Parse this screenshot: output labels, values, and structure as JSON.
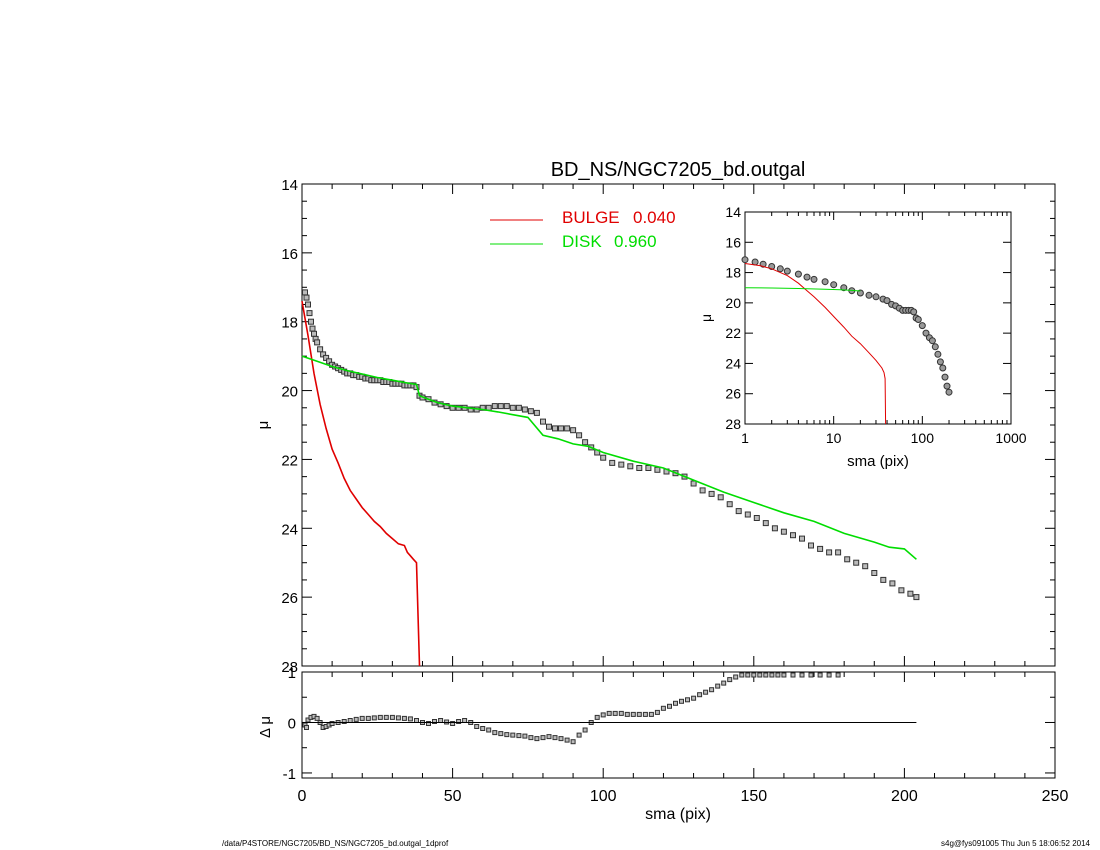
{
  "footer": {
    "path": "/data/P4STORE/NGC7205/BD_NS/NGC7205_bd.outgal_1dprof",
    "stamp": "s4g@fys091005  Thu Jun  5 18:06:52 2014"
  },
  "colors": {
    "bulge": "#e00000",
    "disk": "#00dd00",
    "data": "#555555",
    "axis": "#000000"
  },
  "chart_data": [
    {
      "id": "main",
      "type": "scatter",
      "title": "BD_NS/NGC7205_bd.outgal",
      "xlabel": "",
      "ylabel": "μ",
      "xlim": [
        0,
        250
      ],
      "ylim": [
        28,
        14
      ],
      "yticks": [
        14,
        16,
        18,
        20,
        22,
        24,
        26,
        28
      ],
      "legend": [
        {
          "name": "BULGE",
          "value": "0.040",
          "color": "#e00000"
        },
        {
          "name": "DISK",
          "value": "0.960",
          "color": "#00dd00"
        }
      ],
      "legend_placement": "top-center",
      "series": [
        {
          "name": "data",
          "kind": "points",
          "x": [
            1,
            1.5,
            2,
            2.5,
            3,
            3.5,
            4,
            4.5,
            5,
            6,
            7,
            8,
            9,
            10,
            11,
            12,
            13,
            14,
            15,
            16,
            17,
            18,
            19,
            20,
            21,
            22,
            23,
            24,
            25,
            26,
            27,
            28,
            29,
            30,
            31,
            32,
            33,
            34,
            35,
            36,
            37,
            38,
            39,
            40,
            42,
            44,
            46,
            48,
            50,
            52,
            54,
            56,
            58,
            60,
            62,
            64,
            66,
            68,
            70,
            72,
            74,
            76,
            78,
            80,
            82,
            84,
            86,
            88,
            90,
            92,
            94,
            96,
            98,
            100,
            103,
            106,
            109,
            112,
            115,
            118,
            121,
            124,
            127,
            130,
            133,
            136,
            139,
            142,
            145,
            148,
            151,
            154,
            157,
            160,
            163,
            166,
            169,
            172,
            175,
            178,
            181,
            184,
            187,
            190,
            193,
            196,
            199,
            202,
            204
          ],
          "y": [
            17.15,
            17.3,
            17.5,
            17.75,
            18.0,
            18.2,
            18.35,
            18.5,
            18.6,
            18.8,
            18.95,
            19.05,
            19.15,
            19.25,
            19.3,
            19.35,
            19.4,
            19.45,
            19.5,
            19.5,
            19.55,
            19.55,
            19.6,
            19.6,
            19.65,
            19.65,
            19.7,
            19.7,
            19.7,
            19.7,
            19.75,
            19.75,
            19.75,
            19.8,
            19.8,
            19.8,
            19.8,
            19.85,
            19.85,
            19.85,
            19.85,
            19.9,
            20.15,
            20.2,
            20.25,
            20.35,
            20.4,
            20.45,
            20.5,
            20.5,
            20.5,
            20.55,
            20.55,
            20.5,
            20.5,
            20.45,
            20.45,
            20.45,
            20.5,
            20.5,
            20.55,
            20.6,
            20.65,
            20.9,
            21.05,
            21.1,
            21.1,
            21.1,
            21.15,
            21.3,
            21.5,
            21.65,
            21.8,
            21.95,
            22.1,
            22.15,
            22.2,
            22.25,
            22.25,
            22.3,
            22.35,
            22.4,
            22.5,
            22.7,
            22.9,
            23.0,
            23.1,
            23.3,
            23.5,
            23.6,
            23.7,
            23.85,
            24.0,
            24.1,
            24.2,
            24.3,
            24.5,
            24.6,
            24.7,
            24.7,
            24.9,
            25.0,
            25.1,
            25.3,
            25.5,
            25.6,
            25.8,
            25.9,
            26.0
          ]
        },
        {
          "name": "BULGE",
          "kind": "line",
          "color": "#e00000",
          "x": [
            0,
            2,
            4,
            6,
            8,
            10,
            12,
            14,
            16,
            18,
            20,
            22,
            24,
            26,
            28,
            30,
            32,
            34,
            35,
            36,
            37,
            38,
            39
          ],
          "y": [
            17.4,
            18.4,
            19.5,
            20.4,
            21.1,
            21.7,
            22.1,
            22.55,
            22.9,
            23.15,
            23.4,
            23.6,
            23.8,
            23.95,
            24.15,
            24.3,
            24.45,
            24.5,
            24.7,
            24.8,
            24.9,
            25.0,
            28.3
          ]
        },
        {
          "name": "DISK",
          "kind": "line",
          "color": "#00dd00",
          "x": [
            0,
            5,
            10,
            15,
            20,
            25,
            30,
            35,
            38,
            39,
            41,
            45,
            50,
            55,
            60,
            65,
            70,
            75,
            80,
            85,
            90,
            95,
            100,
            110,
            120,
            130,
            140,
            150,
            160,
            170,
            180,
            190,
            195,
            200,
            204
          ],
          "y": [
            19.0,
            19.15,
            19.3,
            19.42,
            19.52,
            19.62,
            19.7,
            19.78,
            19.82,
            20.15,
            20.22,
            20.35,
            20.45,
            20.5,
            20.55,
            20.62,
            20.7,
            20.78,
            21.3,
            21.4,
            21.55,
            21.62,
            21.8,
            22.05,
            22.25,
            22.6,
            22.95,
            23.25,
            23.55,
            23.8,
            24.15,
            24.4,
            24.55,
            24.6,
            24.9
          ]
        }
      ]
    },
    {
      "id": "inset",
      "type": "scatter",
      "xlabel": "sma (pix)",
      "ylabel": "μ",
      "xscale": "log",
      "xlim": [
        1,
        1000
      ],
      "ylim": [
        28,
        14
      ],
      "xticks": [
        "1",
        "10",
        "100",
        "1000"
      ],
      "yticks": [
        14,
        16,
        18,
        20,
        22,
        24,
        26,
        28
      ],
      "series": [
        {
          "name": "data",
          "kind": "points",
          "x": [
            1,
            1.3,
            1.6,
            2,
            2.5,
            3,
            4,
            5,
            6,
            8,
            10,
            13,
            16,
            20,
            25,
            30,
            36,
            40,
            45,
            50,
            55,
            60,
            65,
            70,
            75,
            80,
            85,
            90,
            100,
            110,
            120,
            130,
            140,
            150,
            160,
            170,
            180,
            190,
            200
          ],
          "y": [
            17.15,
            17.3,
            17.45,
            17.6,
            17.75,
            17.9,
            18.1,
            18.3,
            18.45,
            18.6,
            18.8,
            19.0,
            19.2,
            19.35,
            19.5,
            19.6,
            19.75,
            19.85,
            20.1,
            20.2,
            20.35,
            20.5,
            20.5,
            20.5,
            20.5,
            20.6,
            21.0,
            21.1,
            21.5,
            22.0,
            22.3,
            22.5,
            22.9,
            23.4,
            23.9,
            24.3,
            24.9,
            25.5,
            25.9
          ]
        },
        {
          "name": "BULGE",
          "kind": "line",
          "color": "#e00000",
          "x": [
            1,
            1.5,
            2,
            3,
            4,
            5,
            6,
            8,
            10,
            13,
            16,
            20,
            25,
            30,
            35,
            37,
            38,
            38.5
          ],
          "y": [
            17.4,
            17.55,
            17.75,
            18.2,
            18.7,
            19.2,
            19.6,
            20.3,
            20.9,
            21.6,
            22.2,
            22.7,
            23.3,
            23.8,
            24.3,
            24.6,
            25.0,
            28.3
          ]
        },
        {
          "name": "DISK",
          "kind": "line",
          "color": "#00dd00",
          "x": [
            1,
            2,
            4,
            8,
            12,
            16,
            20
          ],
          "y": [
            19.0,
            19.02,
            19.05,
            19.1,
            19.13,
            19.18,
            19.22
          ]
        }
      ]
    },
    {
      "id": "residual",
      "type": "scatter",
      "xlabel": "sma (pix)",
      "ylabel": "Δ μ",
      "xlim": [
        0,
        250
      ],
      "ylim": [
        -1.1,
        1.0
      ],
      "xticks": [
        0,
        50,
        100,
        150,
        200,
        250
      ],
      "yticks": [
        -1,
        0,
        1
      ],
      "series": [
        {
          "name": "residual",
          "kind": "points",
          "x": [
            1,
            1.5,
            2,
            3,
            4,
            5,
            6,
            7,
            8,
            9,
            10,
            12,
            14,
            16,
            18,
            20,
            22,
            24,
            26,
            28,
            30,
            32,
            34,
            36,
            38,
            40,
            42,
            44,
            46,
            48,
            50,
            52,
            54,
            56,
            58,
            60,
            62,
            64,
            66,
            68,
            70,
            72,
            74,
            76,
            78,
            80,
            82,
            84,
            86,
            88,
            90,
            92,
            94,
            96,
            98,
            100,
            102,
            104,
            106,
            108,
            110,
            112,
            114,
            116,
            118,
            120,
            122,
            124,
            126,
            128,
            130,
            132,
            134,
            136,
            138,
            140,
            142,
            144,
            146,
            148,
            150,
            152,
            154,
            156,
            158,
            160,
            163,
            166,
            169,
            172,
            175,
            178
          ],
          "y": [
            -0.05,
            -0.1,
            0.05,
            0.1,
            0.12,
            0.08,
            0.0,
            -0.1,
            -0.08,
            -0.05,
            -0.02,
            0.0,
            0.02,
            0.04,
            0.06,
            0.08,
            0.08,
            0.09,
            0.1,
            0.1,
            0.1,
            0.09,
            0.08,
            0.07,
            0.04,
            0.0,
            -0.02,
            0.02,
            0.04,
            0.01,
            -0.02,
            0.02,
            0.04,
            0.0,
            -0.08,
            -0.12,
            -0.15,
            -0.2,
            -0.22,
            -0.24,
            -0.25,
            -0.26,
            -0.27,
            -0.3,
            -0.32,
            -0.3,
            -0.28,
            -0.3,
            -0.32,
            -0.35,
            -0.38,
            -0.25,
            -0.15,
            0.0,
            0.1,
            0.15,
            0.18,
            0.18,
            0.18,
            0.16,
            0.16,
            0.16,
            0.16,
            0.16,
            0.2,
            0.28,
            0.32,
            0.38,
            0.42,
            0.45,
            0.48,
            0.55,
            0.6,
            0.65,
            0.72,
            0.78,
            0.85,
            0.9,
            0.95,
            0.98,
            1.0,
            1.0,
            1.0,
            1.0,
            1.0,
            1.0,
            1.0,
            1.0,
            1.0,
            1.0,
            1.0,
            1.0
          ]
        },
        {
          "name": "zero",
          "kind": "line",
          "x": [
            0,
            204
          ],
          "y": [
            0,
            0
          ]
        }
      ]
    }
  ]
}
